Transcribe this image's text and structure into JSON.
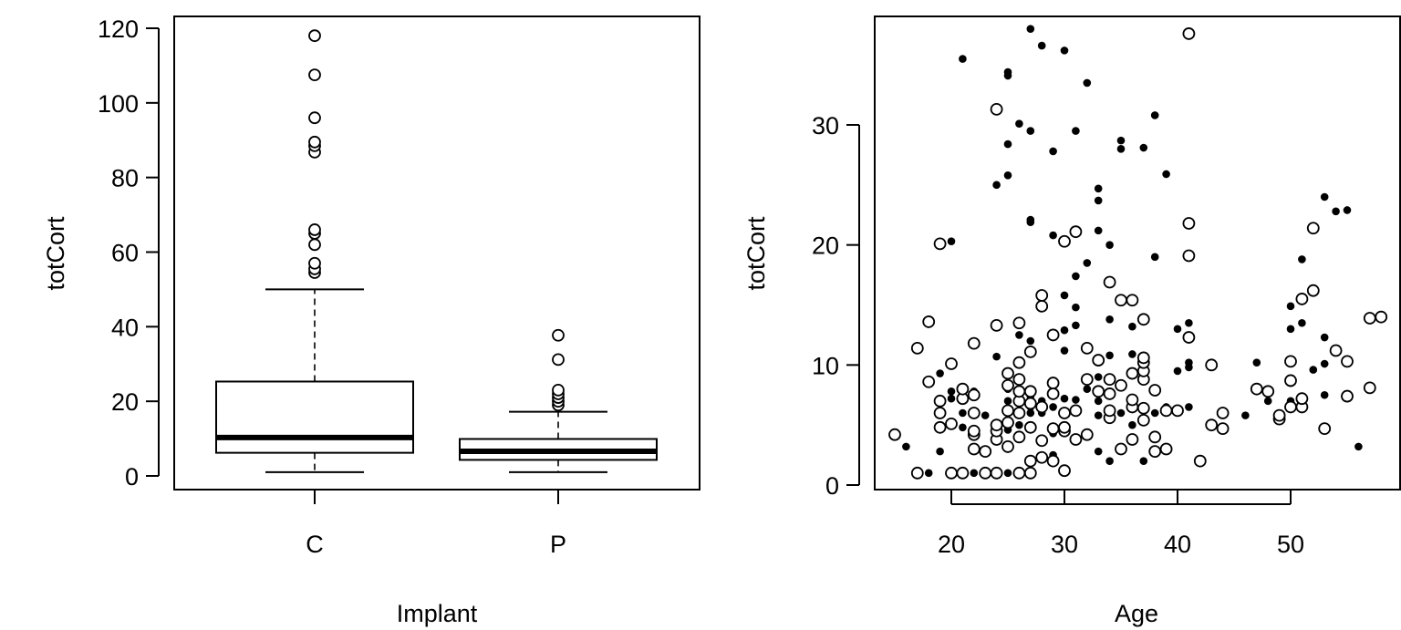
{
  "chart_data": [
    {
      "type": "boxplot",
      "xlabel": "Implant",
      "ylabel": "totCort",
      "ylim": [
        0,
        120
      ],
      "yticks": [
        "0",
        "20",
        "40",
        "60",
        "80",
        "100",
        "120"
      ],
      "categories": [
        "C",
        "P"
      ],
      "boxes": [
        {
          "category": "C",
          "whisker_low": 1,
          "q1": 6.2,
          "median": 10.3,
          "q3": 25.3,
          "whisker_high": 50,
          "outliers": [
            54.5,
            55.5,
            57,
            62,
            65,
            66,
            86.8,
            88.5,
            89.5,
            96,
            107.5,
            118
          ]
        },
        {
          "category": "P",
          "whisker_low": 1,
          "q1": 4.3,
          "median": 6.6,
          "q3": 9.9,
          "whisker_high": 17.2,
          "outliers": [
            19,
            20,
            21,
            22,
            23,
            31.2,
            37.7
          ]
        }
      ]
    },
    {
      "type": "scatter",
      "xlabel": "Age",
      "ylabel": "totCort",
      "xticks": [
        "20",
        "30",
        "40",
        "50"
      ],
      "yticks": [
        "0",
        "10",
        "20",
        "30"
      ],
      "xlim": [
        14.2,
        58.7
      ],
      "ylim": [
        -1.2,
        38.8
      ],
      "series": [
        {
          "marker": "filled",
          "points": [
            [
              16,
              3.2
            ],
            [
              18,
              1
            ],
            [
              19,
              2.8
            ],
            [
              19,
              6
            ],
            [
              19,
              9.3
            ],
            [
              20,
              7.2
            ],
            [
              20,
              7.8
            ],
            [
              20,
              20.3
            ],
            [
              21,
              35.5
            ],
            [
              21,
              4.8
            ],
            [
              21,
              6
            ],
            [
              22,
              1
            ],
            [
              22,
              4.3
            ],
            [
              22,
              7.8
            ],
            [
              23,
              1
            ],
            [
              23,
              5.8
            ],
            [
              24,
              4.4
            ],
            [
              24,
              10.7
            ],
            [
              24,
              25
            ],
            [
              25,
              1
            ],
            [
              25,
              3
            ],
            [
              25,
              4.6
            ],
            [
              25,
              6
            ],
            [
              25,
              7
            ],
            [
              25,
              8
            ],
            [
              25,
              25.8
            ],
            [
              25,
              28.4
            ],
            [
              25,
              34.1
            ],
            [
              25,
              34.4
            ],
            [
              26,
              5
            ],
            [
              26,
              6.8
            ],
            [
              26,
              12.5
            ],
            [
              26,
              30.1
            ],
            [
              27,
              6
            ],
            [
              27,
              6.5
            ],
            [
              27,
              7
            ],
            [
              27,
              7.4
            ],
            [
              27,
              8
            ],
            [
              27,
              12
            ],
            [
              27,
              21.9
            ],
            [
              27,
              22.1
            ],
            [
              27,
              29.5
            ],
            [
              27,
              38
            ],
            [
              28,
              6
            ],
            [
              28,
              6.5
            ],
            [
              28,
              7
            ],
            [
              28,
              36.6
            ],
            [
              29,
              2.5
            ],
            [
              29,
              4.3
            ],
            [
              29,
              6.5
            ],
            [
              29,
              20.8
            ],
            [
              29,
              27.8
            ],
            [
              30,
              7.2
            ],
            [
              30,
              11.2
            ],
            [
              30,
              12.9
            ],
            [
              30,
              15.8
            ],
            [
              30,
              36.2
            ],
            [
              31,
              7.1
            ],
            [
              31,
              13.3
            ],
            [
              31,
              14.8
            ],
            [
              31,
              17.4
            ],
            [
              31,
              21.2
            ],
            [
              31,
              29.5
            ],
            [
              32,
              18.5
            ],
            [
              32,
              33.5
            ],
            [
              32,
              8
            ],
            [
              33,
              2.8
            ],
            [
              33,
              5.8
            ],
            [
              33,
              7
            ],
            [
              33,
              9
            ],
            [
              33,
              21.2
            ],
            [
              33,
              23.7
            ],
            [
              33,
              24.7
            ],
            [
              34,
              2
            ],
            [
              34,
              10.8
            ],
            [
              34,
              13.8
            ],
            [
              34,
              20
            ],
            [
              35,
              6
            ],
            [
              35,
              28
            ],
            [
              35,
              28.7
            ],
            [
              36,
              5
            ],
            [
              36,
              7.2
            ],
            [
              36,
              10.9
            ],
            [
              36,
              13.2
            ],
            [
              37,
              2
            ],
            [
              37,
              28.1
            ],
            [
              38,
              6
            ],
            [
              38,
              19
            ],
            [
              38,
              30.8
            ],
            [
              39,
              6.5
            ],
            [
              39,
              25.9
            ],
            [
              40,
              9.5
            ],
            [
              40,
              13
            ],
            [
              41,
              6.5
            ],
            [
              41,
              9.8
            ],
            [
              41,
              10.2
            ],
            [
              41,
              13.5
            ],
            [
              46,
              5.8
            ],
            [
              47,
              10.2
            ],
            [
              48,
              7
            ],
            [
              50,
              7
            ],
            [
              50,
              8.5
            ],
            [
              50,
              13
            ],
            [
              50,
              14.9
            ],
            [
              51,
              6.8
            ],
            [
              51,
              13.5
            ],
            [
              51,
              18.8
            ],
            [
              52,
              9.6
            ],
            [
              53,
              7.5
            ],
            [
              53,
              10.1
            ],
            [
              53,
              12.3
            ],
            [
              53,
              24
            ],
            [
              54,
              22.8
            ],
            [
              55,
              22.9
            ],
            [
              56,
              3.2
            ]
          ]
        },
        {
          "marker": "open",
          "points": [
            [
              15,
              4.2
            ],
            [
              17,
              1
            ],
            [
              17,
              11.4
            ],
            [
              18,
              13.6
            ],
            [
              18,
              8.6
            ],
            [
              19,
              4.8
            ],
            [
              19,
              6
            ],
            [
              19,
              7
            ],
            [
              19,
              20.1
            ],
            [
              20,
              1
            ],
            [
              20,
              5.1
            ],
            [
              20,
              10.1
            ],
            [
              21,
              1
            ],
            [
              21,
              7.2
            ],
            [
              21,
              8
            ],
            [
              22,
              3
            ],
            [
              22,
              4.2
            ],
            [
              22,
              4.5
            ],
            [
              22,
              6
            ],
            [
              22,
              7.5
            ],
            [
              22,
              11.8
            ],
            [
              23,
              1
            ],
            [
              23,
              2.8
            ],
            [
              24,
              1
            ],
            [
              24,
              3.8
            ],
            [
              24,
              4.5
            ],
            [
              24,
              5
            ],
            [
              24,
              13.3
            ],
            [
              24,
              31.3
            ],
            [
              25,
              3.2
            ],
            [
              25,
              5.2
            ],
            [
              25,
              6.2
            ],
            [
              25,
              8.3
            ],
            [
              25,
              9.3
            ],
            [
              26,
              1
            ],
            [
              26,
              4
            ],
            [
              26,
              6
            ],
            [
              26,
              7
            ],
            [
              26,
              7.8
            ],
            [
              26,
              8.8
            ],
            [
              26,
              10.2
            ],
            [
              26,
              13.5
            ],
            [
              27,
              1
            ],
            [
              27,
              2
            ],
            [
              27,
              4.8
            ],
            [
              27,
              6.8
            ],
            [
              27,
              7.8
            ],
            [
              27,
              11.1
            ],
            [
              28,
              2.3
            ],
            [
              28,
              3.7
            ],
            [
              28,
              6.5
            ],
            [
              28,
              14.9
            ],
            [
              28,
              15.8
            ],
            [
              29,
              2
            ],
            [
              29,
              4.7
            ],
            [
              29,
              7.6
            ],
            [
              29,
              8.5
            ],
            [
              29,
              12.5
            ],
            [
              30,
              1.2
            ],
            [
              30,
              4.5
            ],
            [
              30,
              4.8
            ],
            [
              30,
              6
            ],
            [
              30,
              20.3
            ],
            [
              31,
              3.8
            ],
            [
              31,
              6.2
            ],
            [
              31,
              21.1
            ],
            [
              32,
              4.2
            ],
            [
              32,
              8.8
            ],
            [
              32,
              11.4
            ],
            [
              33,
              7.8
            ],
            [
              33,
              10.4
            ],
            [
              34,
              5.6
            ],
            [
              34,
              6.2
            ],
            [
              34,
              7.6
            ],
            [
              34,
              8.8
            ],
            [
              34,
              16.9
            ],
            [
              35,
              3
            ],
            [
              35,
              8.3
            ],
            [
              35,
              15.4
            ],
            [
              36,
              3.8
            ],
            [
              36,
              6.5
            ],
            [
              36,
              7.1
            ],
            [
              36,
              9.3
            ],
            [
              36,
              15.4
            ],
            [
              37,
              5.4
            ],
            [
              37,
              6.4
            ],
            [
              37,
              8.8
            ],
            [
              37,
              9.5
            ],
            [
              37,
              10.2
            ],
            [
              37,
              10.6
            ],
            [
              37,
              13.8
            ],
            [
              38,
              2.8
            ],
            [
              38,
              4
            ],
            [
              38,
              7.9
            ],
            [
              39,
              3
            ],
            [
              39,
              6.2
            ],
            [
              40,
              6.2
            ],
            [
              41,
              12.3
            ],
            [
              41,
              19.1
            ],
            [
              41,
              21.8
            ],
            [
              41,
              37.6
            ],
            [
              42,
              2
            ],
            [
              43,
              5
            ],
            [
              43,
              10
            ],
            [
              44,
              4.7
            ],
            [
              44,
              6
            ],
            [
              47,
              8
            ],
            [
              48,
              7.8
            ],
            [
              49,
              5.5
            ],
            [
              49,
              5.8
            ],
            [
              50,
              6.5
            ],
            [
              50,
              8.7
            ],
            [
              50,
              10.3
            ],
            [
              51,
              6.5
            ],
            [
              51,
              7.2
            ],
            [
              51,
              15.5
            ],
            [
              52,
              16.2
            ],
            [
              52,
              21.4
            ],
            [
              53,
              4.7
            ],
            [
              54,
              11.2
            ],
            [
              55,
              7.4
            ],
            [
              55,
              10.3
            ],
            [
              57,
              8.1
            ],
            [
              57,
              13.9
            ],
            [
              58,
              14
            ]
          ]
        }
      ]
    }
  ]
}
